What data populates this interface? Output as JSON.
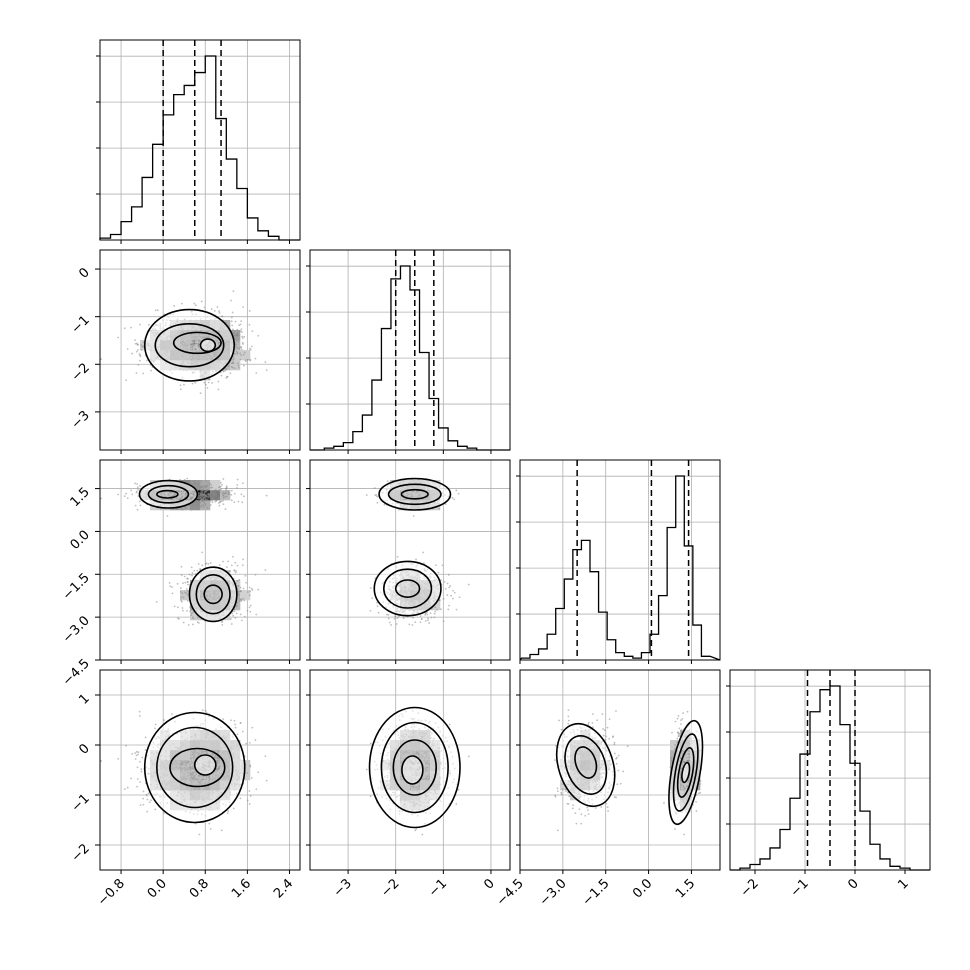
{
  "chart_data": {
    "type": "corner",
    "title": "",
    "colors": {
      "line": "#000000",
      "grid": "#b0b0b0",
      "samples": "#8a8a8a"
    },
    "parameters": [
      {
        "name": "",
        "range": [
          -1.2,
          2.6
        ],
        "ticks": [
          -0.8,
          0.0,
          0.8,
          1.6,
          2.4
        ],
        "tick_labels": [
          "−0.8",
          "0.0",
          "0.8",
          "1.6",
          "2.4"
        ],
        "quantiles": [
          0.0,
          0.6,
          1.1
        ],
        "hist": {
          "bins": [
            -1.1,
            -0.9,
            -0.7,
            -0.5,
            -0.3,
            -0.1,
            0.1,
            0.3,
            0.5,
            0.7,
            0.9,
            1.1,
            1.3,
            1.5,
            1.7,
            1.9,
            2.1,
            2.3
          ],
          "counts": [
            0.01,
            0.03,
            0.1,
            0.18,
            0.34,
            0.52,
            0.68,
            0.79,
            0.84,
            0.91,
            1.0,
            0.66,
            0.44,
            0.28,
            0.12,
            0.05,
            0.02,
            0.0
          ]
        }
      },
      {
        "name": "",
        "range": [
          -3.8,
          0.4
        ],
        "ticks": [
          -3,
          -2,
          -1,
          0
        ],
        "tick_labels": [
          "−3",
          "−2",
          "−1",
          "0"
        ],
        "quantiles": [
          -2.0,
          -1.6,
          -1.2
        ],
        "hist": {
          "bins": [
            -3.6,
            -3.4,
            -3.2,
            -3.0,
            -2.8,
            -2.6,
            -2.4,
            -2.2,
            -2.0,
            -1.8,
            -1.6,
            -1.4,
            -1.2,
            -1.0,
            -0.8,
            -0.6,
            -0.4,
            -0.2,
            0.0
          ],
          "counts": [
            0.0,
            0.01,
            0.02,
            0.04,
            0.1,
            0.19,
            0.38,
            0.66,
            0.93,
            1.0,
            0.87,
            0.53,
            0.28,
            0.12,
            0.05,
            0.02,
            0.01,
            0.0,
            0.0
          ]
        }
      },
      {
        "name": "",
        "range": [
          -4.5,
          2.5
        ],
        "ticks": [
          -4.5,
          -3.0,
          -1.5,
          0.0,
          1.5
        ],
        "tick_labels": [
          "−4.5",
          "−3.0",
          "−1.5",
          "0.0",
          "1.5"
        ],
        "quantiles": [
          -2.5,
          0.1,
          1.4
        ],
        "hist": {
          "bins": [
            -4.3,
            -4.0,
            -3.7,
            -3.4,
            -3.1,
            -2.8,
            -2.5,
            -2.2,
            -1.9,
            -1.6,
            -1.3,
            -1.0,
            -0.7,
            -0.4,
            -0.1,
            0.2,
            0.5,
            0.8,
            1.1,
            1.4,
            1.7,
            2.0
          ],
          "counts": [
            0.01,
            0.03,
            0.06,
            0.14,
            0.28,
            0.44,
            0.6,
            0.65,
            0.48,
            0.26,
            0.11,
            0.04,
            0.02,
            0.01,
            0.04,
            0.14,
            0.35,
            0.72,
            1.0,
            0.62,
            0.19,
            0.02
          ]
        }
      },
      {
        "name": "",
        "range": [
          -2.5,
          1.5
        ],
        "ticks": [
          -2,
          -1,
          0,
          1
        ],
        "tick_labels": [
          "−2",
          "−1",
          "0",
          "1"
        ],
        "quantiles": [
          -0.95,
          -0.5,
          0.0
        ],
        "hist": {
          "bins": [
            -2.4,
            -2.2,
            -2.0,
            -1.8,
            -1.6,
            -1.4,
            -1.2,
            -1.0,
            -0.8,
            -0.6,
            -0.4,
            -0.2,
            0.0,
            0.2,
            0.4,
            0.6,
            0.8,
            1.0,
            1.2
          ],
          "counts": [
            0.0,
            0.01,
            0.03,
            0.06,
            0.12,
            0.22,
            0.39,
            0.63,
            0.86,
            0.98,
            1.0,
            0.79,
            0.58,
            0.32,
            0.14,
            0.06,
            0.02,
            0.01,
            0.0
          ]
        }
      }
    ],
    "clusters": [
      {
        "weight": 0.55,
        "mean": [
          0.45,
          -1.6,
          1.3,
          -0.5
        ],
        "sd": [
          0.42,
          0.3,
          0.22,
          0.4
        ]
      },
      {
        "weight": 0.45,
        "mean": [
          0.95,
          -1.6,
          -2.2,
          -0.4
        ],
        "sd": [
          0.3,
          0.3,
          0.45,
          0.4
        ]
      }
    ],
    "panels_2d": [
      {
        "x": 0,
        "y": 1,
        "contours": [
          {
            "cx": 0.5,
            "cy": -1.6,
            "rx": 0.85,
            "ry": 0.75,
            "rot": 0
          },
          {
            "cx": 0.5,
            "cy": -1.6,
            "rx": 0.65,
            "ry": 0.45,
            "rot": 0
          },
          {
            "cx": 0.65,
            "cy": -1.55,
            "rx": 0.45,
            "ry": 0.22,
            "rot": 0
          },
          {
            "cx": 0.85,
            "cy": -1.6,
            "rx": 0.14,
            "ry": 0.13,
            "rot": 0
          }
        ]
      },
      {
        "x": 0,
        "y": 2,
        "contours": [
          {
            "cx": 0.1,
            "cy": 1.3,
            "rx": 0.55,
            "ry": 0.48,
            "rot": 0
          },
          {
            "cx": 0.1,
            "cy": 1.3,
            "rx": 0.38,
            "ry": 0.3,
            "rot": 0
          },
          {
            "cx": 0.08,
            "cy": 1.3,
            "rx": 0.2,
            "ry": 0.13,
            "rot": 0
          },
          {
            "cx": 0.95,
            "cy": -2.2,
            "rx": 0.45,
            "ry": 0.95,
            "rot": 0
          },
          {
            "cx": 0.95,
            "cy": -2.2,
            "rx": 0.32,
            "ry": 0.68,
            "rot": 0
          },
          {
            "cx": 0.95,
            "cy": -2.2,
            "rx": 0.17,
            "ry": 0.32,
            "rot": 0
          }
        ]
      },
      {
        "x": 1,
        "y": 2,
        "contours": [
          {
            "cx": -1.6,
            "cy": 1.3,
            "rx": 0.75,
            "ry": 0.55,
            "rot": 0
          },
          {
            "cx": -1.6,
            "cy": 1.3,
            "rx": 0.55,
            "ry": 0.35,
            "rot": 0
          },
          {
            "cx": -1.6,
            "cy": 1.3,
            "rx": 0.28,
            "ry": 0.16,
            "rot": 0
          },
          {
            "cx": -1.75,
            "cy": -2.0,
            "rx": 0.7,
            "ry": 0.95,
            "rot": 0
          },
          {
            "cx": -1.75,
            "cy": -2.0,
            "rx": 0.5,
            "ry": 0.68,
            "rot": 0
          },
          {
            "cx": -1.75,
            "cy": -2.0,
            "rx": 0.25,
            "ry": 0.3,
            "rot": 0
          }
        ]
      },
      {
        "x": 0,
        "y": 3,
        "contours": [
          {
            "cx": 0.6,
            "cy": -0.45,
            "rx": 0.95,
            "ry": 1.1,
            "rot": 0
          },
          {
            "cx": 0.6,
            "cy": -0.45,
            "rx": 0.72,
            "ry": 0.8,
            "rot": 0
          },
          {
            "cx": 0.65,
            "cy": -0.45,
            "rx": 0.52,
            "ry": 0.38,
            "rot": 0
          },
          {
            "cx": 0.8,
            "cy": -0.4,
            "rx": 0.2,
            "ry": 0.2,
            "rot": 0
          }
        ]
      },
      {
        "x": 1,
        "y": 3,
        "contours": [
          {
            "cx": -1.6,
            "cy": -0.45,
            "rx": 0.95,
            "ry": 1.2,
            "rot": 0
          },
          {
            "cx": -1.6,
            "cy": -0.45,
            "rx": 0.7,
            "ry": 0.9,
            "rot": 0
          },
          {
            "cx": -1.6,
            "cy": -0.45,
            "rx": 0.45,
            "ry": 0.55,
            "rot": 0
          },
          {
            "cx": -1.65,
            "cy": -0.5,
            "rx": 0.22,
            "ry": 0.28,
            "rot": 0
          }
        ]
      },
      {
        "x": 2,
        "y": 3,
        "contours": [
          {
            "cx": -2.2,
            "cy": -0.4,
            "rx": 0.95,
            "ry": 0.85,
            "rot": -18
          },
          {
            "cx": -2.2,
            "cy": -0.4,
            "rx": 0.68,
            "ry": 0.6,
            "rot": -18
          },
          {
            "cx": -2.2,
            "cy": -0.35,
            "rx": 0.35,
            "ry": 0.32,
            "rot": -18
          },
          {
            "cx": 1.3,
            "cy": -0.55,
            "rx": 0.5,
            "ry": 1.05,
            "rot": 10
          },
          {
            "cx": 1.3,
            "cy": -0.55,
            "rx": 0.36,
            "ry": 0.78,
            "rot": 10
          },
          {
            "cx": 1.3,
            "cy": -0.55,
            "rx": 0.24,
            "ry": 0.5,
            "rot": 10
          },
          {
            "cx": 1.3,
            "cy": -0.55,
            "rx": 0.12,
            "ry": 0.2,
            "rot": 10
          }
        ]
      }
    ]
  }
}
